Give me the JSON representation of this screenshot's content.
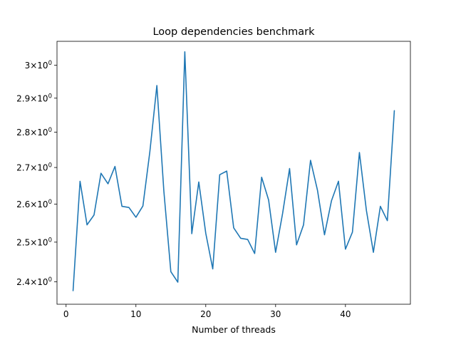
{
  "chart_data": {
    "type": "line",
    "title": "Loop dependencies benchmark",
    "xlabel": "Number of threads",
    "ylabel": "",
    "xscale": "linear",
    "yscale": "log",
    "xlim": [
      -1.3,
      49.3
    ],
    "ylim": [
      2.345,
      3.075
    ],
    "grid": false,
    "line_color": "#1f77b4",
    "x_ticks": [
      {
        "value": 0,
        "label": "0"
      },
      {
        "value": 10,
        "label": "10"
      },
      {
        "value": 20,
        "label": "20"
      },
      {
        "value": 30,
        "label": "30"
      },
      {
        "value": 40,
        "label": "40"
      }
    ],
    "y_ticks": [
      {
        "value": 2.4,
        "mantissa": "2.4",
        "times": "×",
        "base": "10",
        "exp": "0"
      },
      {
        "value": 2.5,
        "mantissa": "2.5",
        "times": "×",
        "base": "10",
        "exp": "0"
      },
      {
        "value": 2.6,
        "mantissa": "2.6",
        "times": "×",
        "base": "10",
        "exp": "0"
      },
      {
        "value": 2.7,
        "mantissa": "2.7",
        "times": "×",
        "base": "10",
        "exp": "0"
      },
      {
        "value": 2.8,
        "mantissa": "2.8",
        "times": "×",
        "base": "10",
        "exp": "0"
      },
      {
        "value": 2.9,
        "mantissa": "2.9",
        "times": "×",
        "base": "10",
        "exp": "0"
      },
      {
        "value": 3.0,
        "mantissa": "3",
        "times": "×",
        "base": "10",
        "exp": "0"
      }
    ],
    "series": [
      {
        "x": [
          1,
          2,
          3,
          4,
          5,
          6,
          7,
          8,
          9,
          10,
          11,
          12,
          13,
          14,
          15,
          16,
          17,
          18,
          19,
          20,
          21,
          22,
          23,
          24,
          25,
          26,
          27,
          28,
          29,
          30,
          31,
          32,
          33,
          34,
          35,
          36,
          37,
          38,
          39,
          40,
          41,
          42,
          43,
          44,
          45,
          46,
          47
        ],
        "y": [
          2.378,
          2.662,
          2.545,
          2.571,
          2.684,
          2.655,
          2.703,
          2.594,
          2.591,
          2.565,
          2.595,
          2.745,
          2.938,
          2.635,
          2.425,
          2.399,
          3.042,
          2.522,
          2.66,
          2.523,
          2.432,
          2.68,
          2.69,
          2.537,
          2.51,
          2.507,
          2.471,
          2.673,
          2.611,
          2.474,
          2.575,
          2.697,
          2.493,
          2.545,
          2.72,
          2.637,
          2.519,
          2.609,
          2.662,
          2.482,
          2.526,
          2.742,
          2.583,
          2.474,
          2.594,
          2.556,
          2.863
        ]
      }
    ]
  }
}
